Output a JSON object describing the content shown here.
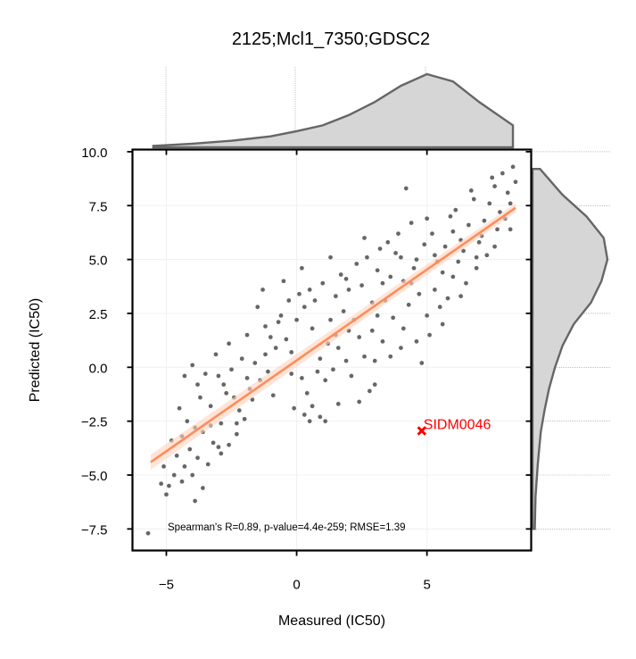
{
  "chart_data": {
    "type": "scatter",
    "title": "2125;Mcl1_7350;GDSC2",
    "xlabel": "Measured (IC50)",
    "ylabel": "Predicted (IC50)",
    "xlim": [
      -6.3,
      9.0
    ],
    "ylim": [
      -8.5,
      10.1
    ],
    "xticks": [
      -5,
      0,
      5
    ],
    "xtick_labels": [
      "−5",
      "0",
      "5"
    ],
    "yticks": [
      -7.5,
      -5.0,
      -2.5,
      0.0,
      2.5,
      5.0,
      7.5,
      10.0
    ],
    "ytick_labels": [
      "−7.5",
      "−5.0",
      "−2.5",
      "0.0",
      "2.5",
      "5.0",
      "7.5",
      "10.0"
    ],
    "grid": true,
    "point_color": "#666666",
    "regression": {
      "color": "#ff8c5a",
      "x": [
        -5.6,
        8.4
      ],
      "y": [
        -4.4,
        7.4
      ]
    },
    "annotation": "Spearman's R=0.89, p-value=4.4e-259; RMSE=1.39",
    "highlight": {
      "label": "SIDM0046",
      "x": 4.8,
      "y": -2.95,
      "color": "#ff0000"
    },
    "marginal_x": {
      "x": [
        -5.5,
        -4,
        -2.5,
        -1,
        0,
        1,
        2,
        3,
        4,
        5,
        6,
        7,
        8.3
      ],
      "density": [
        0.02,
        0.05,
        0.09,
        0.15,
        0.22,
        0.3,
        0.44,
        0.62,
        0.84,
        1.0,
        0.9,
        0.62,
        0.3
      ]
    },
    "marginal_y": {
      "y": [
        -7.5,
        -6,
        -4.5,
        -3,
        -2,
        -1,
        0,
        1,
        2,
        3,
        4,
        5,
        6,
        7,
        8,
        9.2
      ],
      "density": [
        0.03,
        0.04,
        0.07,
        0.11,
        0.16,
        0.22,
        0.3,
        0.4,
        0.55,
        0.78,
        0.92,
        1.0,
        0.95,
        0.72,
        0.4,
        0.1
      ]
    },
    "points": [
      [
        -5.7,
        -7.7
      ],
      [
        -5.2,
        -5.4
      ],
      [
        -5.0,
        -5.9
      ],
      [
        -4.9,
        -5.5
      ],
      [
        -4.4,
        -5.3
      ],
      [
        -3.9,
        -6.2
      ],
      [
        -3.6,
        -5.6
      ],
      [
        -4.6,
        -4.1
      ],
      [
        -4.3,
        -4.6
      ],
      [
        -4.1,
        -3.8
      ],
      [
        -3.8,
        -4.2
      ],
      [
        -4.4,
        -3.2
      ],
      [
        -3.6,
        -3.0
      ],
      [
        -3.2,
        -3.5
      ],
      [
        -2.9,
        -4.0
      ],
      [
        -2.6,
        -3.6
      ],
      [
        -4.0,
        -5.0
      ],
      [
        -3.4,
        -4.5
      ],
      [
        -2.9,
        -2.6
      ],
      [
        -2.3,
        -3.1
      ],
      [
        -2.0,
        -2.4
      ],
      [
        -4.2,
        -2.5
      ],
      [
        -3.3,
        -1.8
      ],
      [
        -2.7,
        -1.2
      ],
      [
        -3.0,
        -0.4
      ],
      [
        -2.5,
        -0.1
      ],
      [
        -1.8,
        -1.0
      ],
      [
        -2.2,
        -2.0
      ],
      [
        -4.3,
        -0.4
      ],
      [
        -3.8,
        -0.8
      ],
      [
        -4.0,
        0.1
      ],
      [
        -3.5,
        -0.3
      ],
      [
        -2.1,
        0.4
      ],
      [
        -1.6,
        0.2
      ],
      [
        -1.2,
        0.6
      ],
      [
        -1.9,
        1.5
      ],
      [
        -1.2,
        1.9
      ],
      [
        -0.6,
        2.4
      ],
      [
        -1.5,
        2.8
      ],
      [
        -0.8,
        0.9
      ],
      [
        -0.4,
        1.3
      ],
      [
        -0.2,
        -0.3
      ],
      [
        0.2,
        -0.5
      ],
      [
        0.4,
        -1.2
      ],
      [
        0.6,
        -1.8
      ],
      [
        0.5,
        -2.5
      ],
      [
        0.3,
        -2.2
      ],
      [
        1.1,
        -2.5
      ],
      [
        -0.9,
        -1.3
      ],
      [
        -1.4,
        -0.6
      ],
      [
        -1.7,
        -1.5
      ],
      [
        -2.4,
        -1.4
      ],
      [
        0.0,
        2.2
      ],
      [
        0.3,
        2.8
      ],
      [
        0.1,
        3.4
      ],
      [
        0.7,
        3.1
      ],
      [
        0.9,
        0.4
      ],
      [
        1.1,
        -0.6
      ],
      [
        1.4,
        -0.1
      ],
      [
        1.2,
        1.1
      ],
      [
        1.6,
        0.9
      ],
      [
        1.3,
        2.2
      ],
      [
        1.8,
        2.6
      ],
      [
        1.5,
        3.3
      ],
      [
        2.0,
        3.6
      ],
      [
        1.9,
        4.1
      ],
      [
        2.5,
        3.8
      ],
      [
        2.2,
        2.2
      ],
      [
        2.4,
        1.4
      ],
      [
        2.6,
        0.5
      ],
      [
        2.1,
        -0.4
      ],
      [
        2.8,
        -1.1
      ],
      [
        3.0,
        0.3
      ],
      [
        3.3,
        1.2
      ],
      [
        3.1,
        2.4
      ],
      [
        3.4,
        3.1
      ],
      [
        3.1,
        4.5
      ],
      [
        3.6,
        4.2
      ],
      [
        3.8,
        5.3
      ],
      [
        3.5,
        5.8
      ],
      [
        4.0,
        5.1
      ],
      [
        4.3,
        2.9
      ],
      [
        4.1,
        1.8
      ],
      [
        4.6,
        1.2
      ],
      [
        4.8,
        0.2
      ],
      [
        5.1,
        1.5
      ],
      [
        4.7,
        3.4
      ],
      [
        5.0,
        2.4
      ],
      [
        5.3,
        3.6
      ],
      [
        5.5,
        2.8
      ],
      [
        5.6,
        4.4
      ],
      [
        5.8,
        3.2
      ],
      [
        4.5,
        4.6
      ],
      [
        4.9,
        5.7
      ],
      [
        5.2,
        6.2
      ],
      [
        4.4,
        6.7
      ],
      [
        5.7,
        5.6
      ],
      [
        6.0,
        6.3
      ],
      [
        6.2,
        4.9
      ],
      [
        6.4,
        5.4
      ],
      [
        6.6,
        6.6
      ],
      [
        6.1,
        7.3
      ],
      [
        6.8,
        7.8
      ],
      [
        7.0,
        5.8
      ],
      [
        7.2,
        6.8
      ],
      [
        7.4,
        7.6
      ],
      [
        7.6,
        8.4
      ],
      [
        7.9,
        9.0
      ],
      [
        8.1,
        8.1
      ],
      [
        8.3,
        9.3
      ],
      [
        8.0,
        6.9
      ],
      [
        7.7,
        6.4
      ],
      [
        7.3,
        5.2
      ],
      [
        6.9,
        4.6
      ],
      [
        6.5,
        3.9
      ],
      [
        8.2,
        7.6
      ],
      [
        4.2,
        8.3
      ],
      [
        3.2,
        5.5
      ],
      [
        2.7,
        5.1
      ],
      [
        2.3,
        4.8
      ],
      [
        1.7,
        4.3
      ],
      [
        1.0,
        3.9
      ],
      [
        0.5,
        3.6
      ],
      [
        -0.3,
        3.1
      ],
      [
        -0.7,
        2.1
      ],
      [
        -1.0,
        1.4
      ],
      [
        -2.6,
        1.1
      ],
      [
        -3.1,
        0.6
      ],
      [
        -2.8,
        -0.8
      ],
      [
        -3.7,
        -1.4
      ],
      [
        -4.5,
        -1.9
      ],
      [
        -3.9,
        -2.8
      ],
      [
        -4.8,
        -3.4
      ],
      [
        -5.1,
        -4.6
      ],
      [
        -4.7,
        -5.0
      ],
      [
        0.8,
        -0.2
      ],
      [
        1.9,
        0.3
      ],
      [
        2.9,
        1.7
      ],
      [
        3.7,
        2.3
      ],
      [
        4.4,
        3.9
      ],
      [
        5.4,
        4.9
      ],
      [
        6.3,
        5.9
      ],
      [
        7.1,
        6.1
      ],
      [
        7.8,
        7.2
      ],
      [
        8.4,
        8.6
      ],
      [
        7.5,
        8.8
      ],
      [
        6.7,
        8.2
      ],
      [
        5.9,
        7.0
      ],
      [
        5.0,
        6.9
      ],
      [
        3.9,
        6.2
      ],
      [
        2.6,
        6.0
      ],
      [
        1.3,
        5.1
      ],
      [
        0.2,
        4.6
      ],
      [
        -0.5,
        4.0
      ],
      [
        -1.3,
        3.6
      ],
      [
        3.0,
        -0.8
      ],
      [
        3.6,
        0.5
      ],
      [
        4.0,
        0.9
      ],
      [
        2.4,
        -1.6
      ],
      [
        1.6,
        -1.7
      ],
      [
        0.9,
        -2.3
      ],
      [
        -0.1,
        -1.9
      ],
      [
        5.6,
        2.0
      ],
      [
        6.3,
        3.3
      ],
      [
        6.0,
        4.2
      ],
      [
        6.9,
        5.1
      ],
      [
        7.6,
        5.6
      ],
      [
        8.2,
        6.4
      ],
      [
        5.3,
        5.2
      ],
      [
        4.6,
        5.0
      ],
      [
        4.1,
        4.0
      ],
      [
        3.3,
        3.9
      ],
      [
        2.9,
        3.0
      ],
      [
        2.0,
        1.7
      ],
      [
        1.5,
        1.5
      ],
      [
        0.6,
        1.8
      ],
      [
        -0.2,
        0.7
      ],
      [
        -1.1,
        -0.2
      ],
      [
        -1.9,
        -0.5
      ],
      [
        -2.3,
        -2.6
      ],
      [
        -3.3,
        -2.7
      ],
      [
        -3.0,
        -3.7
      ]
    ]
  }
}
